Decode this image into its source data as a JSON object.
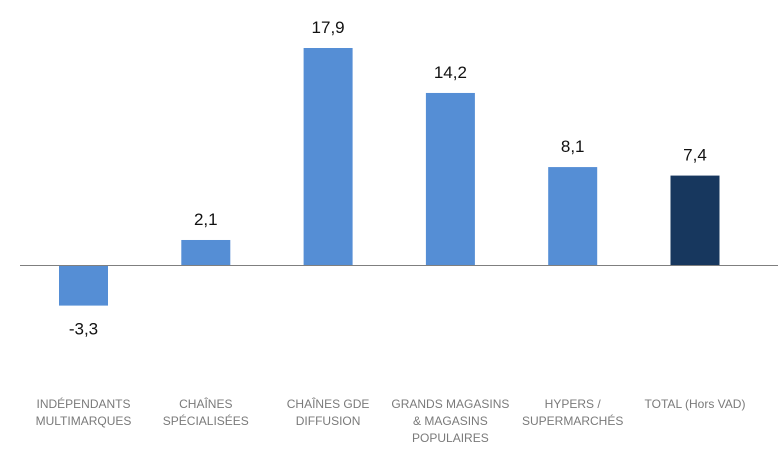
{
  "chart_data": {
    "type": "bar",
    "categories": [
      "INDÉPENDANTS\nMULTIMARQUES",
      "CHAÎNES\nSPÉCIALISÉES",
      "CHAÎNES GDE\nDIFFUSION",
      "GRANDS MAGASINS\n& MAGASINS\nPOPULAIRES",
      "HYPERS /\nSUPERMARCHÉS",
      "TOTAL (Hors VAD)"
    ],
    "values": [
      -3.3,
      2.1,
      17.9,
      14.2,
      8.1,
      7.4
    ],
    "value_labels": [
      "-3,3",
      "2,1",
      "17,9",
      "14,2",
      "8,1",
      "7,4"
    ],
    "title": "",
    "xlabel": "",
    "ylabel": "",
    "ylim": [
      -3.3,
      17.9
    ],
    "grid": false,
    "legend": "none",
    "colors": {
      "bar": "#558ed5",
      "total_bar": "#17375e",
      "axis": "#7f7f7f"
    }
  }
}
